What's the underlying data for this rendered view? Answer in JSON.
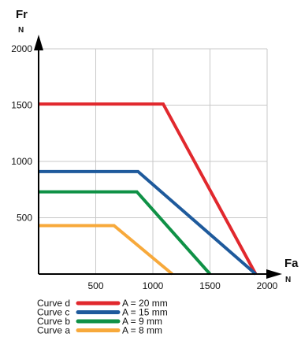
{
  "chart_data": {
    "type": "line",
    "title": "",
    "xlabel": "Fa",
    "xunit": "N",
    "ylabel": "Fr",
    "yunit": "N",
    "xlim": [
      0,
      2000
    ],
    "ylim": [
      0,
      2000
    ],
    "x_ticks": [
      {
        "value": 500,
        "label": "500"
      },
      {
        "value": 1000,
        "label": "1000"
      },
      {
        "value": 1500,
        "label": "1500"
      },
      {
        "value": 2000,
        "label": "2000"
      }
    ],
    "y_ticks": [
      {
        "value": 500,
        "label": "500"
      },
      {
        "value": 1000,
        "label": "1000"
      },
      {
        "value": 1500,
        "label": "1500"
      },
      {
        "value": 2000,
        "label": "2000"
      }
    ],
    "grid": true,
    "legend_position": "bottom-left",
    "series": [
      {
        "name": "Curve d",
        "spec": "A = 20 mm",
        "color": "#e1282d",
        "points": [
          [
            0,
            1510
          ],
          [
            1090,
            1510
          ],
          [
            1900,
            0
          ]
        ]
      },
      {
        "name": "Curve c",
        "spec": "A = 15 mm",
        "color": "#1e5a9c",
        "points": [
          [
            0,
            910
          ],
          [
            870,
            910
          ],
          [
            1900,
            0
          ]
        ]
      },
      {
        "name": "Curve b",
        "spec": "A =  9 mm",
        "color": "#0f9146",
        "points": [
          [
            0,
            730
          ],
          [
            860,
            730
          ],
          [
            1500,
            0
          ]
        ]
      },
      {
        "name": "Curve a",
        "spec": "A =  8 mm",
        "color": "#f7a93b",
        "points": [
          [
            0,
            430
          ],
          [
            660,
            430
          ],
          [
            1170,
            0
          ]
        ]
      }
    ]
  }
}
